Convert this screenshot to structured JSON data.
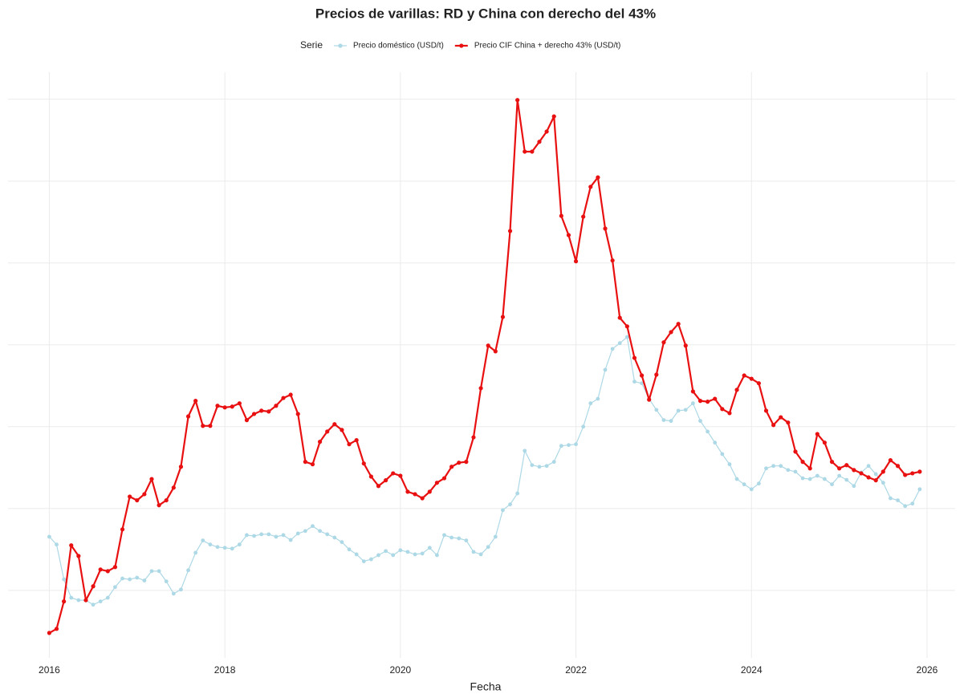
{
  "chart_data": {
    "type": "line",
    "title": "Precios de varillas: RD y China con derecho del 43%",
    "legend_title": "Serie",
    "xlabel": "Fecha",
    "x": [
      "2016-01",
      "2016-02",
      "2016-03",
      "2016-04",
      "2016-05",
      "2016-06",
      "2016-07",
      "2016-08",
      "2016-09",
      "2016-10",
      "2016-11",
      "2016-12",
      "2017-01",
      "2017-02",
      "2017-03",
      "2017-04",
      "2017-05",
      "2017-06",
      "2017-07",
      "2017-08",
      "2017-09",
      "2017-10",
      "2017-11",
      "2017-12",
      "2018-01",
      "2018-02",
      "2018-03",
      "2018-04",
      "2018-05",
      "2018-06",
      "2018-07",
      "2018-08",
      "2018-09",
      "2018-10",
      "2018-11",
      "2018-12",
      "2019-01",
      "2019-02",
      "2019-03",
      "2019-04",
      "2019-05",
      "2019-06",
      "2019-07",
      "2019-08",
      "2019-09",
      "2019-10",
      "2019-11",
      "2019-12",
      "2020-01",
      "2020-02",
      "2020-03",
      "2020-04",
      "2020-05",
      "2020-06",
      "2020-07",
      "2020-08",
      "2020-09",
      "2020-10",
      "2020-11",
      "2020-12",
      "2021-01",
      "2021-02",
      "2021-03",
      "2021-04",
      "2021-05",
      "2021-06",
      "2021-07",
      "2021-08",
      "2021-09",
      "2021-10",
      "2021-11",
      "2021-12",
      "2022-01",
      "2022-02",
      "2022-03",
      "2022-04",
      "2022-05",
      "2022-06",
      "2022-07",
      "2022-08",
      "2022-09",
      "2022-10",
      "2022-11",
      "2022-12",
      "2023-01",
      "2023-02",
      "2023-03",
      "2023-04",
      "2023-05",
      "2023-06",
      "2023-07",
      "2023-08",
      "2023-09",
      "2023-10",
      "2023-11",
      "2023-12",
      "2024-01",
      "2024-02",
      "2024-03",
      "2024-04",
      "2024-05",
      "2024-06",
      "2024-07",
      "2024-08",
      "2024-09",
      "2024-10",
      "2024-11",
      "2024-12",
      "2025-01",
      "2025-02",
      "2025-03",
      "2025-04",
      "2025-05",
      "2025-06",
      "2025-07",
      "2025-08",
      "2025-09",
      "2025-10",
      "2025-11",
      "2025-12"
    ],
    "series": [
      {
        "name": "Precio doméstico (USD/t)",
        "color": "#add8e6",
        "width": 1.2,
        "values": [
          531,
          512,
          427,
          382,
          376,
          376,
          365,
          373,
          382,
          408,
          429,
          427,
          431,
          424,
          447,
          447,
          422,
          392,
          402,
          449,
          492,
          522,
          512,
          506,
          504,
          502,
          512,
          535,
          533,
          537,
          537,
          531,
          535,
          523,
          539,
          545,
          557,
          545,
          537,
          529,
          518,
          500,
          488,
          471,
          476,
          486,
          496,
          486,
          498,
          494,
          488,
          490,
          504,
          486,
          535,
          529,
          527,
          522,
          494,
          488,
          506,
          531,
          596,
          610,
          637,
          741,
          706,
          702,
          704,
          714,
          753,
          755,
          757,
          800,
          857,
          868,
          939,
          990,
          1004,
          1019,
          910,
          906,
          868,
          841,
          816,
          814,
          839,
          841,
          857,
          814,
          788,
          761,
          733,
          708,
          672,
          659,
          647,
          661,
          698,
          704,
          704,
          694,
          690,
          674,
          672,
          680,
          672,
          659,
          680,
          670,
          655,
          688,
          704,
          684,
          663,
          625,
          620,
          606,
          612,
          647
        ]
      },
      {
        "name": "Precio CIF China + derecho 43% (USD/t)",
        "color": "#e81010",
        "width": 2.2,
        "values": [
          296,
          306,
          373,
          510,
          484,
          376,
          410,
          451,
          447,
          457,
          549,
          629,
          620,
          635,
          672,
          608,
          620,
          651,
          702,
          825,
          863,
          802,
          802,
          851,
          847,
          849,
          857,
          816,
          831,
          839,
          837,
          851,
          870,
          878,
          831,
          714,
          708,
          763,
          788,
          806,
          792,
          757,
          767,
          710,
          678,
          655,
          669,
          686,
          680,
          641,
          635,
          625,
          641,
          663,
          674,
          702,
          712,
          714,
          774,
          894,
          998,
          984,
          1068,
          1278,
          1598,
          1472,
          1472,
          1496,
          1521,
          1558,
          1315,
          1268,
          1204,
          1313,
          1386,
          1409,
          1284,
          1206,
          1066,
          1045,
          968,
          925,
          866,
          927,
          1006,
          1031,
          1051,
          998,
          886,
          863,
          861,
          868,
          843,
          833,
          890,
          925,
          917,
          906,
          839,
          804,
          823,
          810,
          739,
          714,
          698,
          782,
          761,
          714,
          698,
          706,
          694,
          686,
          676,
          669,
          690,
          718,
          704,
          682,
          686,
          690
        ]
      }
    ],
    "xlim": [
      2015.53,
      2026.32
    ],
    "xticks": [
      2016,
      2018,
      2020,
      2022,
      2024,
      2026
    ],
    "ylim": [
      235,
      1666
    ],
    "yticks": [
      400,
      600,
      800,
      1000,
      1200,
      1400,
      1600
    ],
    "grid": true
  }
}
